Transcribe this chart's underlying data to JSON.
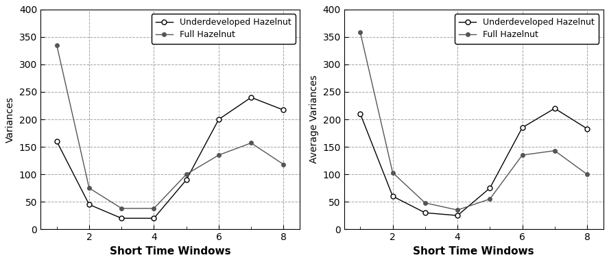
{
  "x": [
    1,
    2,
    3,
    4,
    5,
    6,
    7,
    8
  ],
  "left_underdeveloped": [
    160,
    45,
    20,
    20,
    90,
    200,
    240,
    217
  ],
  "left_full": [
    335,
    75,
    38,
    38,
    100,
    135,
    157,
    118
  ],
  "right_underdeveloped": [
    210,
    60,
    30,
    25,
    75,
    185,
    220,
    183
  ],
  "right_full": [
    358,
    103,
    48,
    35,
    55,
    135,
    143,
    100
  ],
  "left_ylabel": "Variances",
  "right_ylabel": "Average Variances",
  "xlabel": "Short Time Windows",
  "ylim": [
    0,
    400
  ],
  "yticks": [
    0,
    50,
    100,
    150,
    200,
    250,
    300,
    350,
    400
  ],
  "xticks_major": [
    2,
    4,
    6,
    8
  ],
  "xticks_minor": [
    1,
    2,
    3,
    4,
    5,
    6,
    7,
    8
  ],
  "xlim": [
    0.5,
    8.5
  ],
  "legend_underdeveloped": "Underdeveloped Hazelnut",
  "legend_full": "Full Hazelnut",
  "line_color_under": "#000000",
  "line_color_full": "#555555",
  "bg_color": "#ffffff",
  "grid_color": "#999999",
  "marker_size": 5,
  "linewidth": 1.0,
  "xlabel_fontsize": 11,
  "ylabel_fontsize": 10,
  "tick_fontsize": 10,
  "legend_fontsize": 9
}
